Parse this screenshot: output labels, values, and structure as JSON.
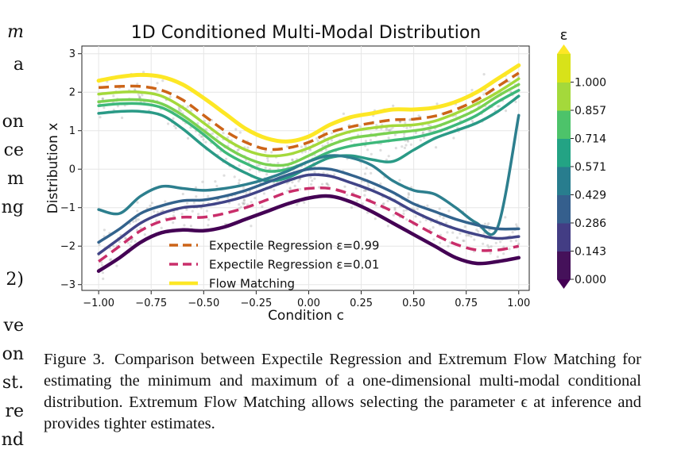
{
  "left_fragments": [
    {
      "text": "m",
      "style": "italic"
    },
    {
      "text": "a"
    },
    {
      "text": "on"
    },
    {
      "text": "ce"
    },
    {
      "text": "m"
    },
    {
      "text": "ng"
    },
    {
      "text": "2)"
    },
    {
      "text": "ve"
    },
    {
      "text": "on"
    },
    {
      "text": "st."
    },
    {
      "text": "re"
    },
    {
      "text": "nd"
    }
  ],
  "caption": {
    "label": "Figure 3.",
    "text": "Comparison between Expectile Regression and Extremum Flow Matching for estimating the minimum and maximum of a one-dimensional multi-modal conditional distribution. Extremum Flow Matching allows selecting the parameter ϵ at inference and provides tighter estimates."
  },
  "chart_data": {
    "type": "line",
    "title": "1D Conditioned Multi-Modal Distribution",
    "xlabel": "Condition c",
    "ylabel": "Distribution x",
    "xlim": [
      -1.08,
      1.05
    ],
    "ylim": [
      -3.15,
      3.2
    ],
    "xticks": [
      -1.0,
      -0.75,
      -0.5,
      -0.25,
      0.0,
      0.25,
      0.5,
      0.75,
      1.0
    ],
    "xtick_labels": [
      "−1.00",
      "−0.75",
      "−0.50",
      "−0.25",
      "0.00",
      "0.25",
      "0.50",
      "0.75",
      "1.00"
    ],
    "yticks": [
      -3,
      -2,
      -1,
      0,
      1,
      2,
      3
    ],
    "ytick_labels": [
      "−3",
      "−2",
      "−1",
      "0",
      "1",
      "2",
      "3"
    ],
    "grid": true,
    "legend_position": "bottom-left",
    "legend": [
      {
        "label": "Expectile Regression ε=0.99",
        "color": "#cc6418",
        "dash": true
      },
      {
        "label": "Expectile Regression ε=0.01",
        "color": "#c92e6a",
        "dash": true
      },
      {
        "label": "Flow Matching",
        "color": "#fde725",
        "dash": false
      }
    ],
    "colorbar": {
      "title": "ε",
      "ticks": [
        "0.000",
        "0.143",
        "0.286",
        "0.429",
        "0.571",
        "0.714",
        "0.857",
        "1.000"
      ],
      "colors": [
        "#45115a",
        "#433d84",
        "#355f8d",
        "#287d8e",
        "#23a384",
        "#4dc36a",
        "#a4d93b",
        "#d8e219"
      ],
      "under_color": "#440154",
      "over_color": "#fde725"
    },
    "x": [
      -1.0,
      -0.9,
      -0.8,
      -0.7,
      -0.6,
      -0.5,
      -0.4,
      -0.3,
      -0.2,
      -0.1,
      0.0,
      0.1,
      0.2,
      0.3,
      0.4,
      0.5,
      0.6,
      0.7,
      0.8,
      0.9,
      1.0
    ],
    "series": [
      {
        "color": "#fde725",
        "width": 5,
        "values": [
          2.3,
          2.4,
          2.45,
          2.4,
          2.2,
          1.85,
          1.45,
          1.05,
          0.8,
          0.72,
          0.85,
          1.15,
          1.35,
          1.45,
          1.55,
          1.55,
          1.6,
          1.75,
          2.0,
          2.35,
          2.7
        ]
      },
      {
        "color": "#cc6418",
        "width": 3.5,
        "dash": true,
        "values": [
          2.12,
          2.15,
          2.15,
          2.05,
          1.8,
          1.4,
          1.0,
          0.7,
          0.52,
          0.55,
          0.7,
          0.95,
          1.1,
          1.2,
          1.28,
          1.3,
          1.38,
          1.55,
          1.8,
          2.15,
          2.5
        ]
      },
      {
        "color": "#a4d93b",
        "width": 3.5,
        "values": [
          1.95,
          2.0,
          2.0,
          1.9,
          1.6,
          1.2,
          0.8,
          0.5,
          0.35,
          0.38,
          0.55,
          0.8,
          0.98,
          1.07,
          1.13,
          1.15,
          1.25,
          1.45,
          1.7,
          2.0,
          2.35
        ]
      },
      {
        "color": "#7ad151",
        "width": 3.5,
        "values": [
          1.75,
          1.8,
          1.8,
          1.7,
          1.4,
          1.0,
          0.6,
          0.3,
          0.12,
          0.12,
          0.35,
          0.62,
          0.8,
          0.88,
          0.95,
          1.0,
          1.1,
          1.3,
          1.55,
          1.9,
          2.2
        ]
      },
      {
        "color": "#3db87a",
        "width": 3.5,
        "values": [
          1.65,
          1.7,
          1.7,
          1.6,
          1.3,
          0.9,
          0.45,
          0.15,
          -0.05,
          0.0,
          0.2,
          0.45,
          0.6,
          0.68,
          0.75,
          0.82,
          0.95,
          1.15,
          1.4,
          1.75,
          2.05
        ]
      },
      {
        "color": "#2a9a86",
        "width": 3.5,
        "values": [
          1.45,
          1.5,
          1.5,
          1.4,
          1.05,
          0.6,
          0.2,
          -0.1,
          -0.3,
          -0.22,
          0.05,
          0.3,
          0.35,
          0.25,
          0.2,
          0.5,
          0.8,
          1.0,
          1.2,
          1.5,
          1.9
        ]
      },
      {
        "color": "#2d7f8e",
        "width": 3.5,
        "values": [
          -1.05,
          -1.15,
          -0.7,
          -0.45,
          -0.5,
          -0.55,
          -0.5,
          -0.4,
          -0.25,
          -0.05,
          0.2,
          0.35,
          0.3,
          0.1,
          -0.3,
          -0.55,
          -0.65,
          -1.0,
          -1.4,
          -1.5,
          1.4
        ]
      },
      {
        "color": "#33638d",
        "width": 3.5,
        "values": [
          -1.9,
          -1.55,
          -1.15,
          -0.95,
          -0.82,
          -0.8,
          -0.7,
          -0.55,
          -0.35,
          -0.15,
          0.0,
          0.0,
          -0.15,
          -0.35,
          -0.6,
          -0.9,
          -1.1,
          -1.3,
          -1.45,
          -1.55,
          -1.55
        ]
      },
      {
        "color": "#414487",
        "width": 3.5,
        "values": [
          -2.2,
          -1.8,
          -1.4,
          -1.15,
          -1.0,
          -0.95,
          -0.85,
          -0.7,
          -0.5,
          -0.3,
          -0.15,
          -0.18,
          -0.35,
          -0.55,
          -0.8,
          -1.1,
          -1.35,
          -1.55,
          -1.7,
          -1.8,
          -1.75
        ]
      },
      {
        "color": "#c92e6a",
        "width": 3.5,
        "dash": true,
        "values": [
          -2.4,
          -2.0,
          -1.6,
          -1.35,
          -1.25,
          -1.25,
          -1.15,
          -1.0,
          -0.8,
          -0.6,
          -0.5,
          -0.5,
          -0.65,
          -0.85,
          -1.1,
          -1.4,
          -1.7,
          -1.95,
          -2.1,
          -2.1,
          -2.0
        ]
      },
      {
        "color": "#440154",
        "width": 4.5,
        "values": [
          -2.65,
          -2.3,
          -1.9,
          -1.65,
          -1.58,
          -1.6,
          -1.5,
          -1.3,
          -1.1,
          -0.9,
          -0.75,
          -0.7,
          -0.85,
          -1.1,
          -1.4,
          -1.7,
          -2.0,
          -2.3,
          -2.45,
          -2.4,
          -2.3
        ]
      }
    ]
  }
}
